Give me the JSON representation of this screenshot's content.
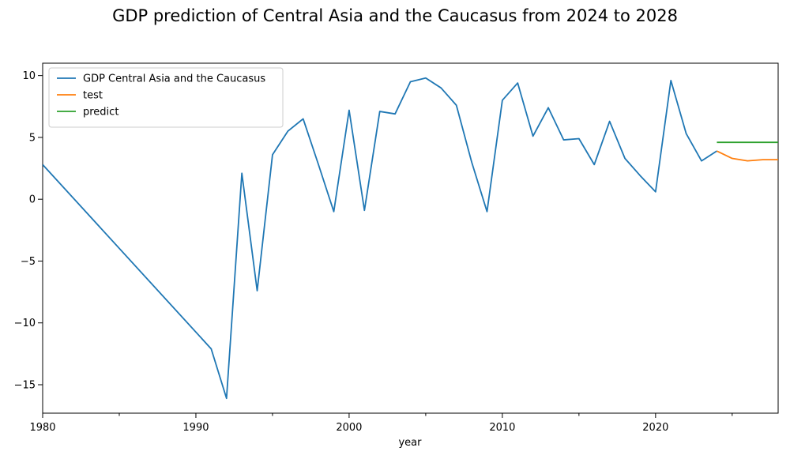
{
  "figure": {
    "title": "GDP prediction of Central Asia and the Caucasus from 2024 to 2028"
  },
  "chart_data": {
    "type": "line",
    "title": "GDP prediction of Central Asia and the Caucasus from 2024 to 2028",
    "xlabel": "year",
    "ylabel": "",
    "xlim": [
      1980,
      2028
    ],
    "ylim": [
      -17.3,
      11.0
    ],
    "x_major_ticks": [
      1980,
      1990,
      2000,
      2010,
      2020
    ],
    "x_minor_ticks": [
      1985,
      1995,
      2005,
      2015,
      2025
    ],
    "y_ticks": [
      10,
      5,
      0,
      -5,
      -10,
      -15
    ],
    "legend_position": "upper-left",
    "grid": false,
    "series": [
      {
        "name": "GDP Central Asia and the Caucasus",
        "color": "#1f77b4",
        "x": [
          1980,
          1991,
          1992,
          1993,
          1994,
          1995,
          1996,
          1997,
          1998,
          1999,
          2000,
          2001,
          2002,
          2003,
          2004,
          2005,
          2006,
          2007,
          2008,
          2009,
          2010,
          2011,
          2012,
          2013,
          2014,
          2015,
          2016,
          2017,
          2018,
          2019,
          2020,
          2021,
          2022,
          2023,
          2024
        ],
        "values": [
          2.8,
          -12.1,
          -16.1,
          2.1,
          -7.4,
          3.6,
          5.5,
          6.5,
          2.8,
          -1.0,
          7.2,
          -0.9,
          7.1,
          6.9,
          9.5,
          9.8,
          9.0,
          7.6,
          3.0,
          -1.0,
          8.0,
          9.4,
          5.1,
          7.4,
          4.8,
          4.9,
          2.8,
          6.3,
          3.3,
          1.9,
          0.6,
          9.6,
          5.3,
          3.1,
          3.9
        ]
      },
      {
        "name": "test",
        "color": "#ff7f0e",
        "x": [
          2024,
          2025,
          2026,
          2027,
          2028
        ],
        "values": [
          3.9,
          3.3,
          3.1,
          3.2,
          3.2
        ]
      },
      {
        "name": "predict",
        "color": "#2ca02c",
        "x": [
          2024,
          2025,
          2026,
          2027,
          2028
        ],
        "values": [
          4.6,
          4.6,
          4.6,
          4.6,
          4.6
        ]
      }
    ]
  }
}
